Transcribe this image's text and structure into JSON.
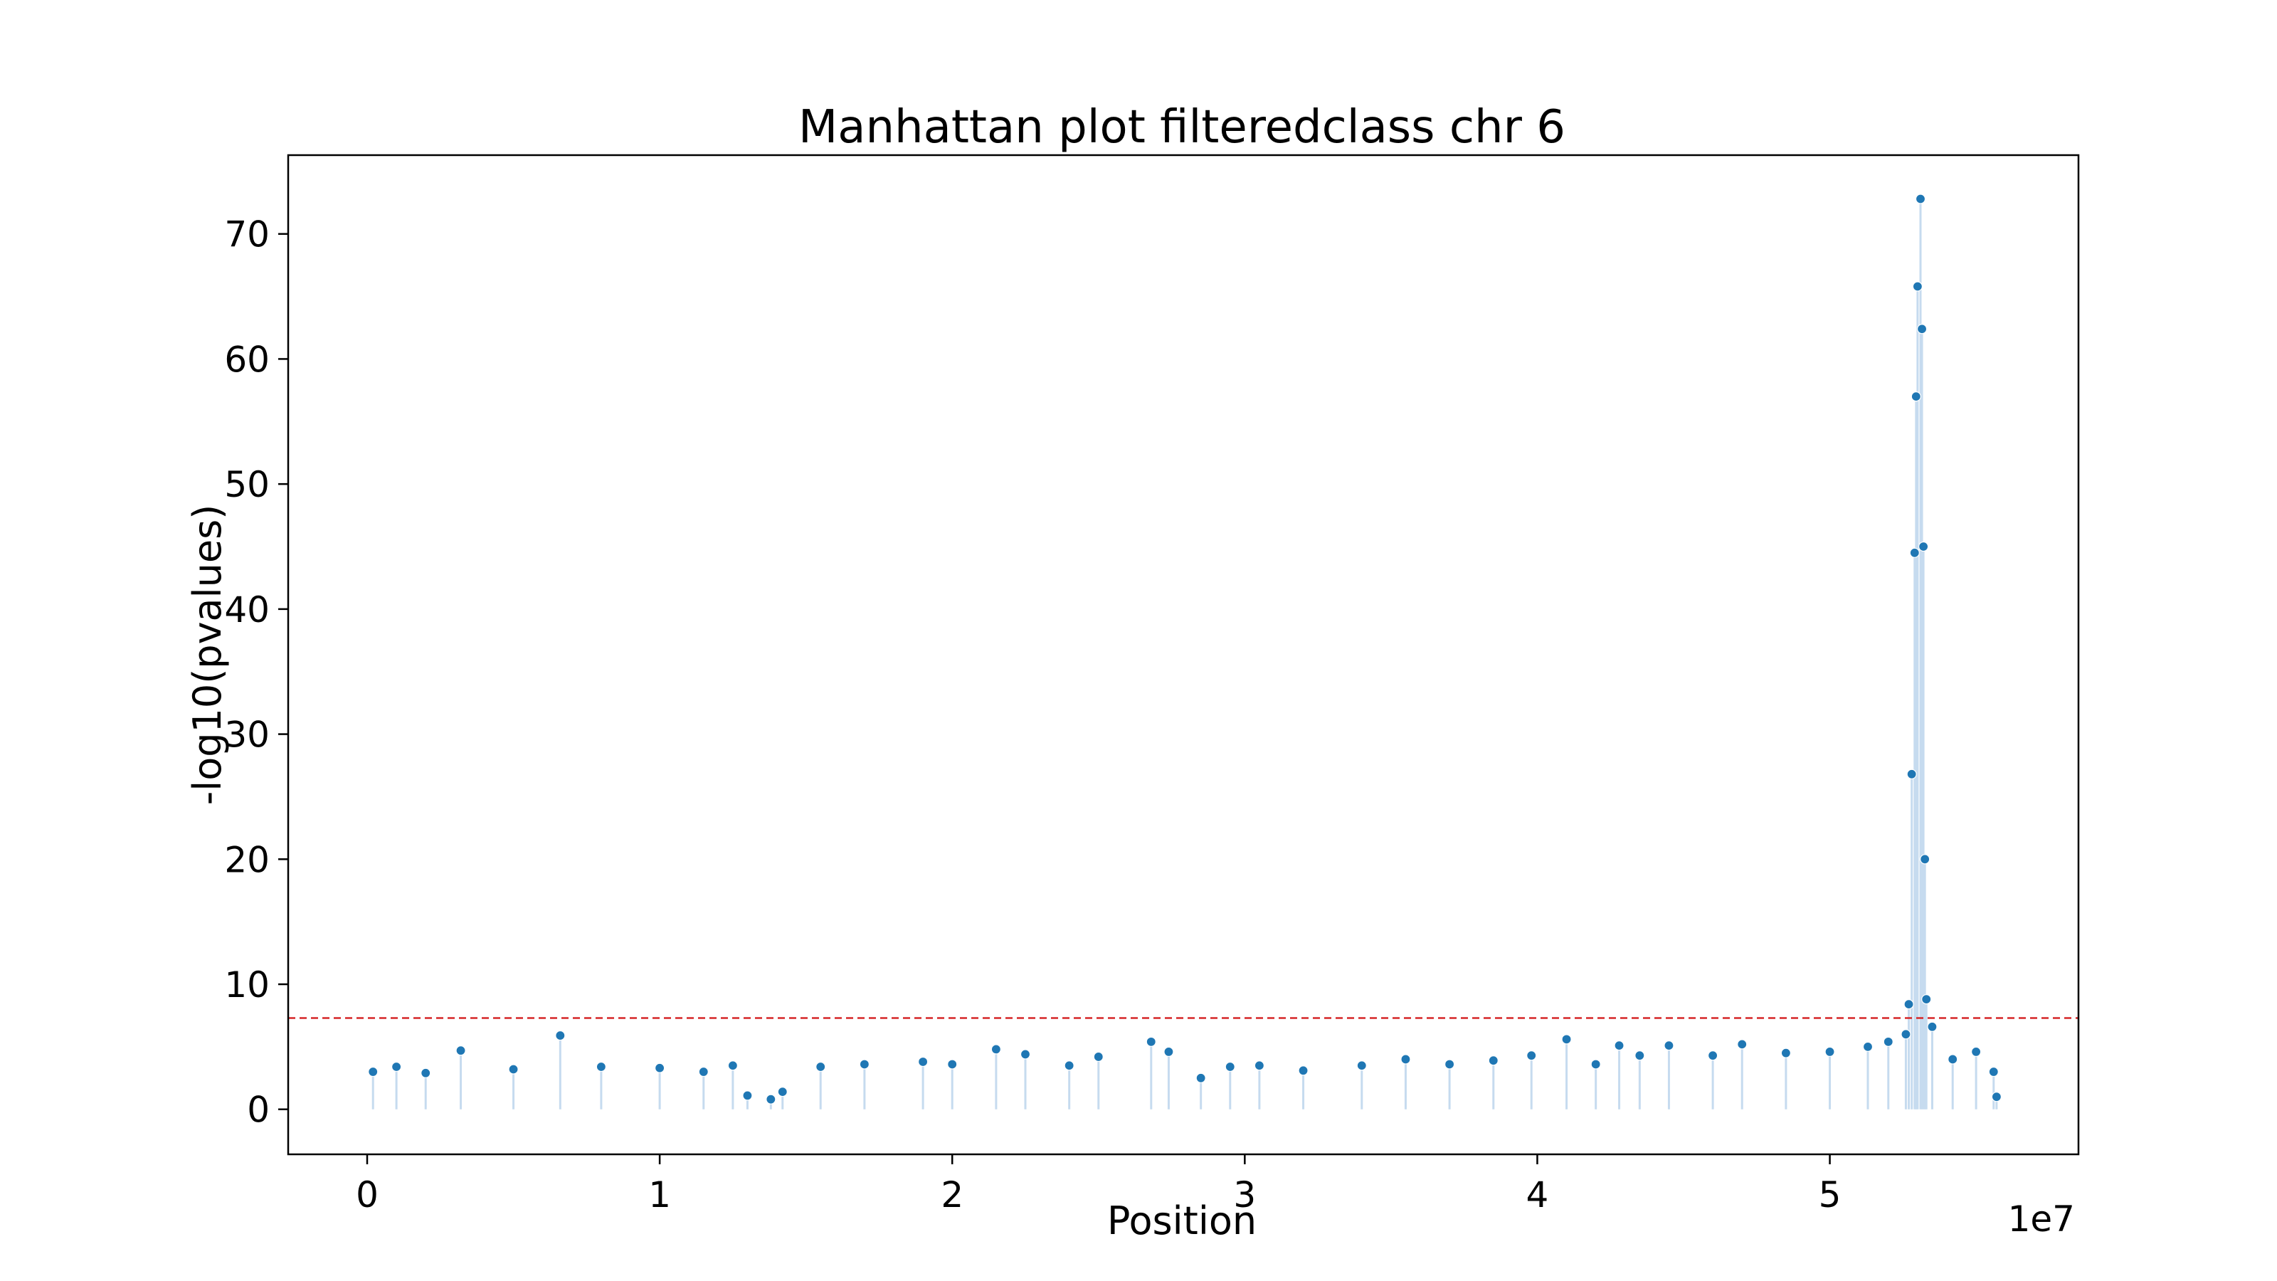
{
  "chart_data": {
    "type": "scatter",
    "title": "Manhattan plot filteredclass chr 6",
    "xlabel": "Position",
    "ylabel": "-log10(pvalues)",
    "x_offset_label": "1e7",
    "x_ticks": [
      0,
      1,
      2,
      3,
      4,
      5
    ],
    "y_ticks": [
      0,
      10,
      20,
      30,
      40,
      50,
      60,
      70
    ],
    "xlim": [
      -0.27,
      5.85
    ],
    "ylim": [
      -3.6,
      76.3
    ],
    "x_unit_scale": "1e7",
    "threshold": {
      "value": 7.3,
      "color": "#d62728",
      "style": "dashed"
    },
    "grid": false,
    "colors": {
      "point": "#1f77b4",
      "point_edge": "#ffffff",
      "stem": "#c6dbef"
    },
    "series": [
      {
        "points": [
          [
            0.02,
            3.0
          ],
          [
            0.1,
            3.4
          ],
          [
            0.2,
            2.9
          ],
          [
            0.32,
            4.7
          ],
          [
            0.5,
            3.2
          ],
          [
            0.66,
            5.9
          ],
          [
            0.8,
            3.4
          ],
          [
            1.0,
            3.3
          ],
          [
            1.15,
            3.0
          ],
          [
            1.25,
            3.5
          ],
          [
            1.3,
            1.1
          ],
          [
            1.38,
            0.8
          ],
          [
            1.42,
            1.4
          ],
          [
            1.55,
            3.4
          ],
          [
            1.7,
            3.6
          ],
          [
            1.9,
            3.8
          ],
          [
            2.0,
            3.6
          ],
          [
            2.15,
            4.8
          ],
          [
            2.25,
            4.4
          ],
          [
            2.4,
            3.5
          ],
          [
            2.5,
            4.2
          ],
          [
            2.68,
            5.4
          ],
          [
            2.74,
            4.6
          ],
          [
            2.85,
            2.5
          ],
          [
            2.95,
            3.4
          ],
          [
            3.05,
            3.5
          ],
          [
            3.2,
            3.1
          ],
          [
            3.4,
            3.5
          ],
          [
            3.55,
            4.0
          ],
          [
            3.7,
            3.6
          ],
          [
            3.85,
            3.9
          ],
          [
            3.98,
            4.3
          ],
          [
            4.1,
            5.6
          ],
          [
            4.2,
            3.6
          ],
          [
            4.28,
            5.1
          ],
          [
            4.35,
            4.3
          ],
          [
            4.45,
            5.1
          ],
          [
            4.6,
            4.3
          ],
          [
            4.7,
            5.2
          ],
          [
            4.85,
            4.5
          ],
          [
            5.0,
            4.6
          ],
          [
            5.13,
            5.0
          ],
          [
            5.2,
            5.4
          ],
          [
            5.26,
            6.0
          ],
          [
            5.27,
            8.4
          ],
          [
            5.28,
            26.8
          ],
          [
            5.29,
            44.5
          ],
          [
            5.295,
            57.0
          ],
          [
            5.3,
            65.8
          ],
          [
            5.31,
            72.8
          ],
          [
            5.315,
            62.4
          ],
          [
            5.32,
            45.0
          ],
          [
            5.325,
            20.0
          ],
          [
            5.33,
            8.8
          ],
          [
            5.35,
            6.6
          ],
          [
            5.42,
            4.0
          ],
          [
            5.5,
            4.6
          ],
          [
            5.56,
            3.0
          ],
          [
            5.57,
            1.0
          ]
        ]
      }
    ]
  }
}
